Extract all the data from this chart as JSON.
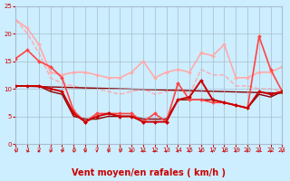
{
  "background_color": "#cceeff",
  "grid_color": "#aabbcc",
  "xlabel": "Vent moyen/en rafales ( km/h )",
  "xlabel_color": "#cc0000",
  "tick_color": "#cc0000",
  "xlabel_fontsize": 7,
  "xlim": [
    0,
    23
  ],
  "ylim": [
    0,
    25
  ],
  "yticks": [
    0,
    5,
    10,
    15,
    20,
    25
  ],
  "xticks": [
    0,
    1,
    2,
    3,
    4,
    5,
    6,
    7,
    8,
    9,
    10,
    11,
    12,
    13,
    14,
    15,
    16,
    17,
    18,
    19,
    20,
    21,
    22,
    23
  ],
  "series": [
    {
      "x": [
        0,
        1,
        2,
        3,
        4,
        5,
        6,
        7,
        8,
        9,
        10,
        11,
        12,
        13,
        14,
        15,
        16,
        17,
        18,
        19,
        20,
        21,
        22,
        23
      ],
      "y": [
        22.5,
        21,
        18,
        13,
        12.5,
        13,
        13,
        12.5,
        12,
        12,
        13,
        15,
        12,
        13,
        13.5,
        13,
        16.5,
        16,
        18,
        12,
        12,
        13,
        13,
        14
      ],
      "color": "#ffaaaa",
      "lw": 1.2,
      "marker": "D",
      "ms": 2.0,
      "zorder": 2,
      "linestyle": "-"
    },
    {
      "x": [
        0,
        1,
        2,
        3,
        4,
        5,
        6,
        7,
        8,
        9,
        10,
        11,
        12,
        13,
        14,
        15,
        16,
        17,
        18,
        19,
        20,
        21,
        22,
        23
      ],
      "y": [
        22.5,
        20,
        16.5,
        12,
        11,
        10.5,
        10,
        10,
        9.5,
        9,
        9.5,
        10,
        9,
        9.5,
        10,
        9,
        13.5,
        12.5,
        12.5,
        10.5,
        10.5,
        10,
        10,
        9.5
      ],
      "color": "#ffaaaa",
      "lw": 1.0,
      "marker": null,
      "ms": 0,
      "zorder": 1,
      "linestyle": "--"
    },
    {
      "x": [
        0,
        1,
        2,
        3,
        4,
        5,
        6,
        7,
        8,
        9,
        10,
        11,
        12,
        13,
        14,
        15,
        16,
        17,
        18,
        19,
        20,
        21,
        22,
        23
      ],
      "y": [
        15.5,
        17,
        15,
        14,
        12,
        6,
        4,
        5.5,
        5.5,
        5.5,
        5.5,
        4,
        5.5,
        4,
        11,
        8,
        8,
        7.5,
        7.5,
        7,
        6.5,
        19.5,
        13.5,
        9.5
      ],
      "color": "#ff4444",
      "lw": 1.2,
      "marker": "D",
      "ms": 2.0,
      "zorder": 3,
      "linestyle": "-"
    },
    {
      "x": [
        0,
        1,
        2,
        3,
        4,
        5,
        6,
        7,
        8,
        9,
        10,
        11,
        12,
        13,
        14,
        15,
        16,
        17,
        18,
        19,
        20,
        21,
        22,
        23
      ],
      "y": [
        10.5,
        10.5,
        10.5,
        10,
        9.5,
        5.5,
        4,
        5,
        5.5,
        5,
        5,
        4,
        4,
        4,
        8,
        8.5,
        11.5,
        8,
        7.5,
        7,
        6.5,
        9.5,
        9,
        9.5
      ],
      "color": "#cc0000",
      "lw": 1.4,
      "marker": "D",
      "ms": 2.0,
      "zorder": 4,
      "linestyle": "-"
    },
    {
      "x": [
        0,
        1,
        2,
        3,
        4,
        5,
        6,
        7,
        8,
        9,
        10,
        11,
        12,
        13,
        14,
        15,
        16,
        17,
        18,
        19,
        20,
        21,
        22,
        23
      ],
      "y": [
        10.5,
        10.5,
        10.5,
        9.5,
        9,
        5,
        4.5,
        4.5,
        5,
        5,
        5,
        4.5,
        4.5,
        4.5,
        8,
        8,
        8,
        8,
        7.5,
        7,
        6.5,
        9,
        8.5,
        9.5
      ],
      "color": "#880000",
      "lw": 1.0,
      "marker": null,
      "ms": 0,
      "zorder": 2,
      "linestyle": "-"
    },
    {
      "x": [
        0,
        23
      ],
      "y": [
        10.5,
        9.2
      ],
      "color": "#880000",
      "lw": 1.0,
      "marker": null,
      "ms": 0,
      "zorder": 1,
      "linestyle": "-"
    }
  ],
  "wind_arrows_color": "#cc0000",
  "wind_arrows_x": [
    0,
    1,
    2,
    3,
    4,
    5,
    6,
    7,
    8,
    9,
    10,
    11,
    12,
    13,
    14,
    15,
    16,
    17,
    18,
    19,
    20,
    21,
    22,
    23
  ]
}
